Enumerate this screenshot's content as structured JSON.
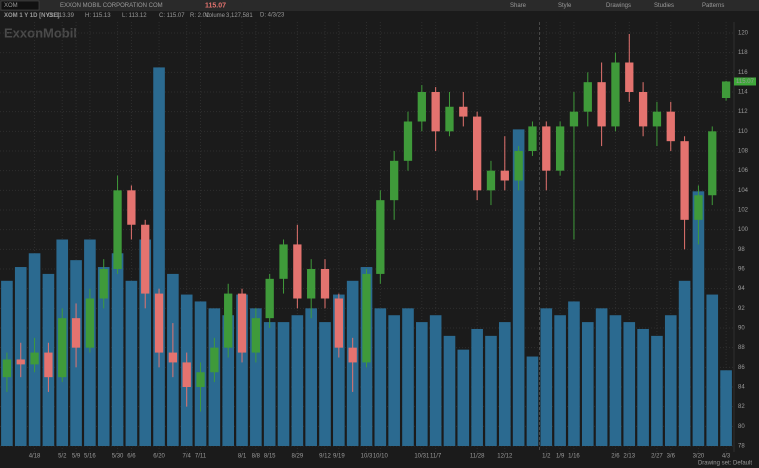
{
  "header": {
    "symbol": "XOM",
    "company": "EXXON MOBIL CORPORATION COM",
    "date": "D: 4/3/23",
    "open": "O: 113.39",
    "high": "H: 115.13",
    "low": "L: 113.12",
    "close": "C: 115.07",
    "range": "R: 2.01",
    "volume_label": "Volume",
    "volume": "3,127,581",
    "last": "115.07",
    "toolbar": [
      "Share",
      "Style",
      "Drawings",
      "Studies",
      "Patterns"
    ]
  },
  "chart_label": "XOM 1 Y 1D [NYSE]",
  "watermark": "ExxonMobil",
  "status": "Drawing set: Default",
  "chart_data": {
    "type": "candlestick",
    "categories": [
      null,
      null,
      "4/18",
      null,
      "5/2",
      "5/9",
      "5/16",
      null,
      "5/30",
      "6/6",
      null,
      "6/20",
      null,
      "7/4",
      "7/11",
      null,
      null,
      "8/1",
      "8/8",
      "8/15",
      null,
      "8/29",
      null,
      "9/12",
      "9/19",
      null,
      "10/3",
      "10/10",
      null,
      null,
      "10/31",
      "11/7",
      null,
      null,
      "11/28",
      null,
      "12/12",
      null,
      null,
      "1/2",
      "1/9",
      "1/16",
      null,
      null,
      "2/6",
      "2/13",
      null,
      "2/27",
      "3/6",
      null,
      "3/20",
      null,
      "4/3"
    ],
    "open": [
      85,
      86.8,
      86.3,
      87.5,
      85,
      91,
      88,
      93,
      96,
      104,
      100.5,
      93.5,
      87.5,
      86.5,
      84,
      85.5,
      88,
      93.5,
      87.5,
      91,
      95,
      98.5,
      93,
      96,
      93,
      88,
      86.5,
      95.5,
      103,
      107,
      111,
      114,
      110,
      112.5,
      111.5,
      104,
      106,
      105,
      108,
      110.5,
      106,
      110.5,
      112,
      115,
      110.5,
      117,
      114,
      110.5,
      112,
      109,
      101,
      103.5,
      113.39
    ],
    "high": [
      87.5,
      88.5,
      89,
      88.5,
      92,
      92.5,
      94,
      97,
      105.5,
      104.5,
      101,
      94,
      90.5,
      87.5,
      86.5,
      89,
      94.5,
      94,
      92,
      95.5,
      99,
      100.5,
      97,
      97,
      93.5,
      89,
      96,
      104,
      108,
      112,
      114.7,
      114.5,
      114,
      114,
      112,
      107,
      109.5,
      108.5,
      111,
      111,
      111,
      114,
      116,
      117,
      118,
      119.9,
      115,
      113,
      113,
      109.5,
      104.5,
      110.5,
      115.13
    ],
    "low": [
      83.5,
      85,
      85.5,
      83.5,
      84.5,
      86,
      87.5,
      92,
      95.5,
      99,
      92,
      86,
      85,
      82,
      81.5,
      84.5,
      87,
      86.5,
      86.5,
      90,
      93.5,
      92,
      91,
      92,
      87,
      83.5,
      86,
      94.5,
      101,
      106,
      110,
      108,
      109.5,
      110.5,
      103,
      102.5,
      104,
      104,
      107.5,
      104,
      105.5,
      99,
      110.5,
      108.5,
      110,
      113,
      109.5,
      108.5,
      108,
      98,
      98.5,
      102.5,
      113.12
    ],
    "close": [
      86.8,
      86.3,
      87.5,
      85,
      91,
      88,
      93,
      96,
      104,
      100.5,
      93.5,
      87.5,
      86.5,
      84,
      85.5,
      88,
      93.5,
      87.5,
      91,
      95,
      98.5,
      93,
      96,
      93,
      88,
      86.5,
      95.5,
      103,
      107,
      111,
      114,
      110,
      112.5,
      111.5,
      104,
      106,
      105,
      108,
      110.5,
      106,
      110.5,
      112,
      115,
      110.5,
      117,
      114,
      110.5,
      112,
      109,
      101,
      103.5,
      110,
      115.07
    ],
    "volume": [
      24,
      26,
      28,
      25,
      30,
      27,
      30,
      26,
      28,
      24,
      30,
      55,
      25,
      22,
      21,
      20,
      19,
      22,
      20,
      18,
      18,
      19,
      20,
      18,
      22,
      24,
      26,
      20,
      19,
      20,
      18,
      19,
      16,
      14,
      17,
      16,
      18,
      46,
      13,
      20,
      19,
      21,
      18,
      20,
      19,
      18,
      17,
      16,
      19,
      24,
      37,
      22,
      11
    ],
    "up_color": "#3f9a3a",
    "down_color": "#e4736f",
    "volume_color": "#2b6a90",
    "ylim": [
      78,
      120
    ],
    "yticks": [
      78,
      80,
      82,
      84,
      86,
      88,
      90,
      92,
      94,
      96,
      98,
      100,
      102,
      104,
      106,
      108,
      110,
      112,
      114,
      116,
      118,
      120
    ],
    "volume_ylim": [
      0,
      60
    ],
    "grid": true
  }
}
